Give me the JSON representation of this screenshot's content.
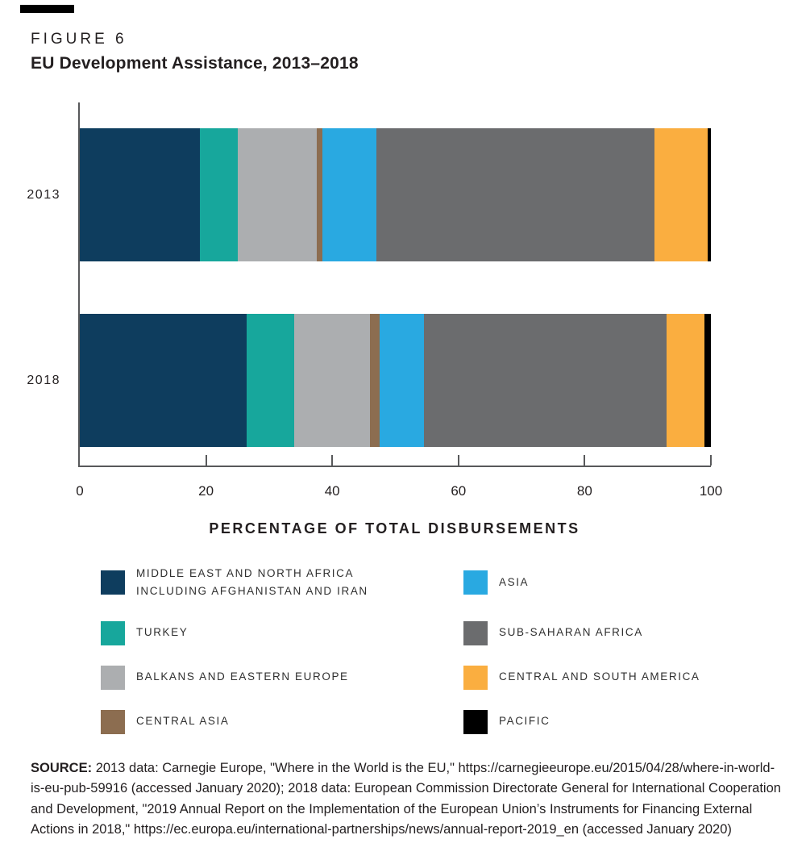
{
  "figure": {
    "label": "FIGURE 6",
    "title": "EU Development Assistance, 2013–2018"
  },
  "chart_data": {
    "type": "bar",
    "orientation": "horizontal",
    "stacked": true,
    "categories": [
      "2013",
      "2018"
    ],
    "series": [
      {
        "id": "middle-east-north-africa",
        "name": "MIDDLE EAST AND NORTH AFRICA INCLUDING AFGHANISTAN AND IRAN",
        "legend_lines": [
          "MIDDLE EAST AND NORTH AFRICA",
          "INCLUDING AFGHANISTAN AND IRAN"
        ],
        "color": "#0E3D5E",
        "values": [
          19,
          26.5
        ]
      },
      {
        "id": "turkey",
        "name": "TURKEY",
        "legend_lines": [
          "TURKEY"
        ],
        "color": "#17A79C",
        "values": [
          6,
          7.5
        ]
      },
      {
        "id": "balkans-eastern-europe",
        "name": "BALKANS AND EASTERN EUROPE",
        "legend_lines": [
          "BALKANS AND EASTERN EUROPE"
        ],
        "color": "#ACAEB0",
        "values": [
          12.5,
          12
        ]
      },
      {
        "id": "central-asia",
        "name": "CENTRAL ASIA",
        "legend_lines": [
          "CENTRAL ASIA"
        ],
        "color": "#8C6D50",
        "values": [
          1,
          1.5
        ]
      },
      {
        "id": "asia",
        "name": "ASIA",
        "legend_lines": [
          "ASIA"
        ],
        "color": "#29A9E1",
        "values": [
          8.5,
          7
        ]
      },
      {
        "id": "sub-saharan-africa",
        "name": "SUB-SAHARAN AFRICA",
        "legend_lines": [
          "SUB-SAHARAN AFRICA"
        ],
        "color": "#6B6C6E",
        "values": [
          44,
          38.5
        ]
      },
      {
        "id": "central-south-america",
        "name": "CENTRAL AND SOUTH AMERICA",
        "legend_lines": [
          "CENTRAL AND SOUTH AMERICA"
        ],
        "color": "#FAAE40",
        "values": [
          8.5,
          6
        ]
      },
      {
        "id": "pacific",
        "name": "PACIFIC",
        "legend_lines": [
          "PACIFIC"
        ],
        "color": "#000000",
        "values": [
          0.5,
          1
        ]
      }
    ],
    "xlabel": "PERCENTAGE OF TOTAL DISBURSEMENTS",
    "x_ticks": [
      0,
      20,
      40,
      60,
      80,
      100
    ],
    "xlim": [
      0,
      100
    ],
    "grid": false,
    "legend_position": "bottom"
  },
  "source": {
    "label": "SOURCE:",
    "text": "2013 data: Carnegie Europe, \"Where in the World is the EU,\" https://carnegieeurope.eu/2015/04/28/where-in-world-is-eu-pub-59916 (accessed January 2020); 2018 data: European Commission Directorate General for International Cooperation and Development, \"2019 Annual Report on the Implementation of the European Union’s Instruments for Financing External Actions in 2018,\" https://ec.europa.eu/international-partnerships/news/annual-report-2019_en (accessed January 2020)"
  }
}
